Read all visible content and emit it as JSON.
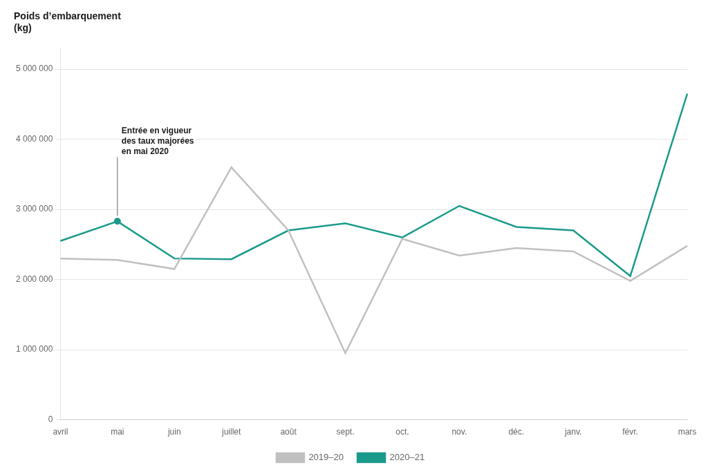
{
  "chart_data": {
    "type": "line",
    "ylabel": [
      "Poids d’embarquement",
      "(kg)"
    ],
    "categories": [
      "avril",
      "mai",
      "juin",
      "juillet",
      "août",
      "sept.",
      "oct.",
      "nov.",
      "déc.",
      "janv.",
      "févr.",
      "mars"
    ],
    "series": [
      {
        "name": "2019‒20",
        "color": "#c0c0c0",
        "values": [
          2300000,
          2280000,
          2150000,
          3600000,
          2700000,
          950000,
          2580000,
          2340000,
          2450000,
          2400000,
          1980000,
          2480000
        ]
      },
      {
        "name": "2020‒21",
        "color": "#1a9a8a",
        "values": [
          2550000,
          2830000,
          2300000,
          2290000,
          2700000,
          2800000,
          2600000,
          3050000,
          2750000,
          2700000,
          2050000,
          4650000
        ]
      }
    ],
    "annotations": [
      {
        "text": "Entrée en vigueur\ndes taux majorées\nen mai 2020",
        "series": "2020‒21",
        "x": "mai",
        "y": 2830000
      }
    ],
    "ylim": [
      0,
      5300000
    ],
    "yticks": [
      0,
      {
        "value": 1000000,
        "label": "1 000 000"
      },
      {
        "value": 2000000,
        "label": "2 000 000"
      },
      {
        "value": 3000000,
        "label": "3 000 000"
      },
      {
        "value": 4000000,
        "label": "4 000 000"
      },
      {
        "value": 5000000,
        "label": "5 000 000"
      }
    ],
    "grid": "y",
    "legend": "bottom"
  }
}
